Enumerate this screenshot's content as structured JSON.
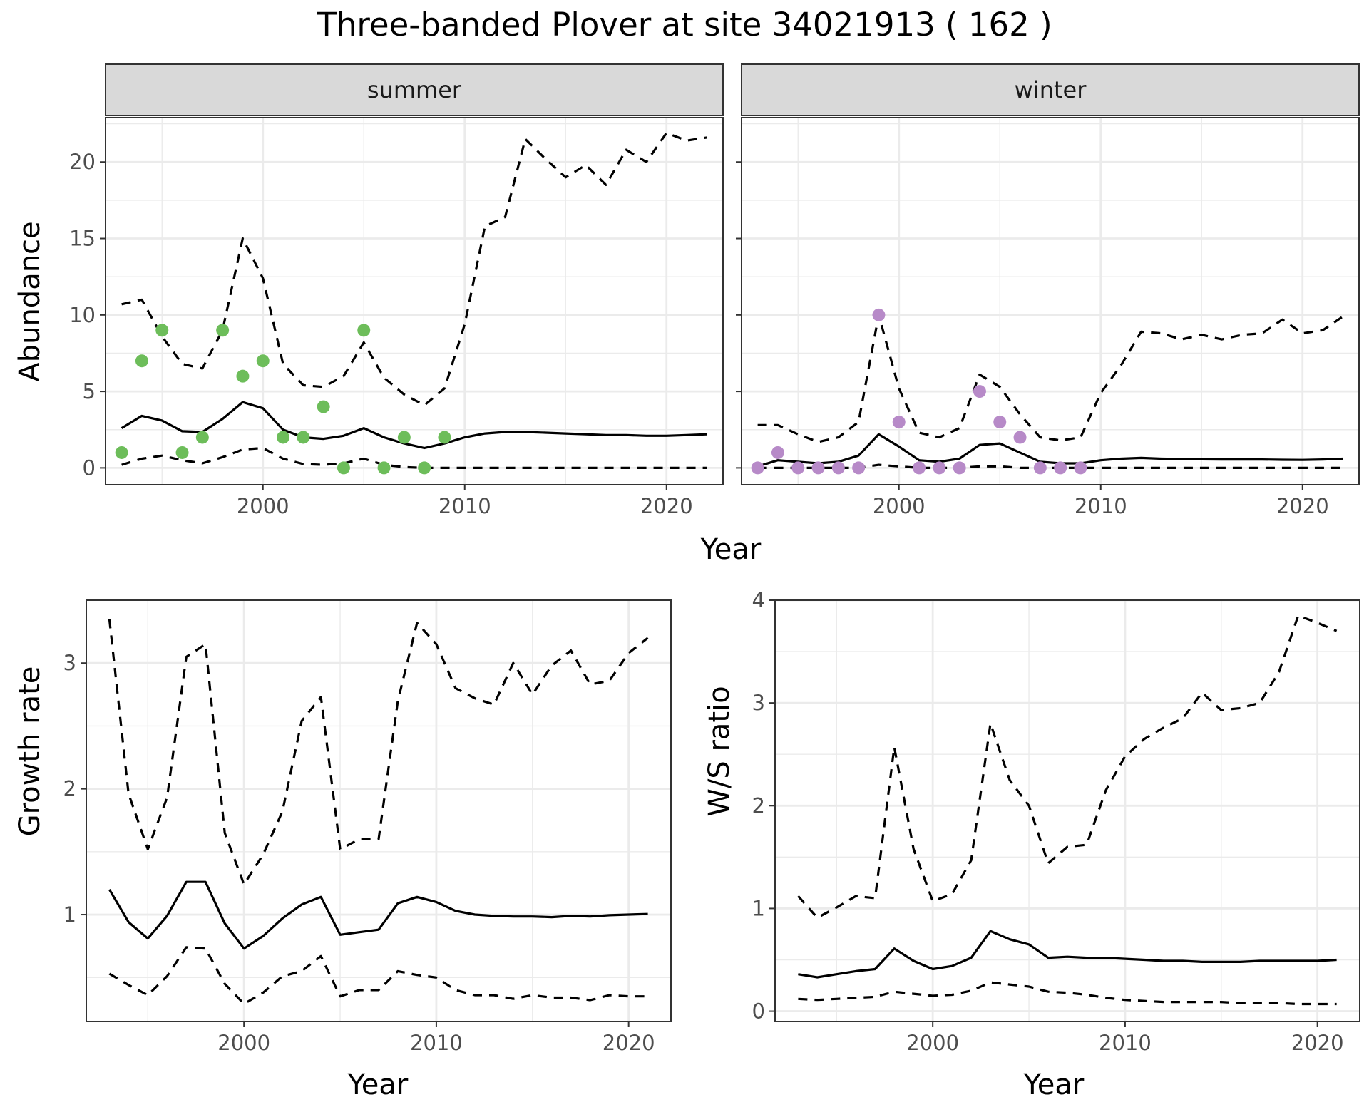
{
  "title": "Three-banded Plover at site 34021913 ( 162 )",
  "colors": {
    "summer_points": "#6dbd5a",
    "winter_points": "#b78ac8",
    "line": "#000000",
    "grid": "#ebebeb",
    "strip_bg": "#d9d9d9",
    "panel_border": "#333333"
  },
  "chart_data": [
    {
      "id": "abundance",
      "type": "line",
      "facets": [
        "summer",
        "winter"
      ],
      "xlabel": "Year",
      "ylabel": "Abundance",
      "xlim": [
        1992.2,
        2022.8
      ],
      "ylim": [
        -1.1,
        22.9
      ],
      "xticks": [
        2000,
        2010,
        2020
      ],
      "yticks": [
        0,
        5,
        10,
        15,
        20
      ],
      "grid": true,
      "panels": [
        {
          "strip": "summer",
          "points": {
            "x": [
              1993,
              1994,
              1995,
              1996,
              1997,
              1998,
              1999,
              2000,
              2001,
              2002,
              2003,
              2004,
              2005,
              2006,
              2007,
              2008,
              2009
            ],
            "y": [
              1,
              7,
              9,
              1,
              2,
              9,
              6,
              7,
              2,
              2,
              4,
              0,
              9,
              0,
              2,
              0,
              2
            ]
          },
          "series": [
            {
              "style": "solid",
              "x": [
                1993,
                1994,
                1995,
                1996,
                1997,
                1998,
                1999,
                2000,
                2001,
                2002,
                2003,
                2004,
                2005,
                2006,
                2007,
                2008,
                2009,
                2010,
                2011,
                2012,
                2013,
                2014,
                2015,
                2016,
                2017,
                2018,
                2019,
                2020,
                2021,
                2022
              ],
              "y": [
                2.6,
                3.4,
                3.1,
                2.4,
                2.35,
                3.2,
                4.3,
                3.9,
                2.5,
                2.0,
                1.9,
                2.1,
                2.6,
                2.0,
                1.6,
                1.3,
                1.6,
                2.0,
                2.25,
                2.35,
                2.35,
                2.3,
                2.25,
                2.2,
                2.15,
                2.15,
                2.1,
                2.1,
                2.15,
                2.2
              ]
            },
            {
              "style": "dashed",
              "x": [
                1993,
                1994,
                1995,
                1996,
                1997,
                1998,
                1999,
                2000,
                2001,
                2002,
                2003,
                2004,
                2005,
                2006,
                2007,
                2008,
                2009,
                2010,
                2011,
                2012,
                2013,
                2014,
                2015,
                2016,
                2017,
                2018,
                2019,
                2020,
                2021,
                2022
              ],
              "y": [
                10.7,
                11.0,
                8.6,
                6.8,
                6.5,
                9.0,
                15.0,
                12.4,
                6.8,
                5.4,
                5.3,
                6.0,
                8.2,
                5.9,
                4.8,
                4.1,
                5.2,
                9.4,
                15.8,
                16.4,
                21.5,
                20.2,
                19.0,
                19.8,
                18.5,
                20.8,
                20.0,
                21.9,
                21.4,
                21.6
              ]
            },
            {
              "style": "dashed",
              "x": [
                1993,
                1994,
                1995,
                1996,
                1997,
                1998,
                1999,
                2000,
                2001,
                2002,
                2003,
                2004,
                2005,
                2006,
                2007,
                2008,
                2009,
                2010,
                2011,
                2012,
                2013,
                2014,
                2015,
                2016,
                2017,
                2018,
                2019,
                2020,
                2021,
                2022
              ],
              "y": [
                0.2,
                0.6,
                0.8,
                0.5,
                0.3,
                0.7,
                1.2,
                1.3,
                0.6,
                0.25,
                0.2,
                0.3,
                0.6,
                0.2,
                0.05,
                0,
                0,
                0,
                0,
                0,
                0,
                0,
                0,
                0,
                0,
                0,
                0,
                0,
                0,
                0
              ]
            }
          ]
        },
        {
          "strip": "winter",
          "points": {
            "x": [
              1993,
              1994,
              1995,
              1996,
              1997,
              1998,
              1999,
              2000,
              2001,
              2002,
              2003,
              2004,
              2005,
              2006,
              2007,
              2008,
              2009
            ],
            "y": [
              0,
              1,
              0,
              0,
              0,
              0,
              10,
              3,
              0,
              0,
              0,
              5,
              3,
              2,
              0,
              0,
              0
            ]
          },
          "series": [
            {
              "style": "solid",
              "x": [
                1993,
                1994,
                1995,
                1996,
                1997,
                1998,
                1999,
                2000,
                2001,
                2002,
                2003,
                2004,
                2005,
                2006,
                2007,
                2008,
                2009,
                2010,
                2011,
                2012,
                2013,
                2014,
                2015,
                2016,
                2017,
                2018,
                2019,
                2020,
                2021,
                2022
              ],
              "y": [
                0.1,
                0.5,
                0.4,
                0.3,
                0.4,
                0.8,
                2.2,
                1.4,
                0.5,
                0.4,
                0.6,
                1.5,
                1.6,
                1.0,
                0.4,
                0.3,
                0.3,
                0.5,
                0.6,
                0.65,
                0.6,
                0.58,
                0.56,
                0.55,
                0.55,
                0.55,
                0.53,
                0.52,
                0.55,
                0.6
              ]
            },
            {
              "style": "dashed",
              "x": [
                1993,
                1994,
                1995,
                1996,
                1997,
                1998,
                1999,
                2000,
                2001,
                2002,
                2003,
                2004,
                2005,
                2006,
                2007,
                2008,
                2009,
                2010,
                2011,
                2012,
                2013,
                2014,
                2015,
                2016,
                2017,
                2018,
                2019,
                2020,
                2021,
                2022
              ],
              "y": [
                2.8,
                2.8,
                2.2,
                1.7,
                2.0,
                3.0,
                10.0,
                5.2,
                2.3,
                2.0,
                2.6,
                6.1,
                5.3,
                3.5,
                2.0,
                1.8,
                2.0,
                4.9,
                6.7,
                8.9,
                8.8,
                8.4,
                8.7,
                8.4,
                8.7,
                8.8,
                9.7,
                8.8,
                9.0,
                9.9
              ]
            },
            {
              "style": "dashed",
              "x": [
                1993,
                1994,
                1995,
                1996,
                1997,
                1998,
                1999,
                2000,
                2001,
                2002,
                2003,
                2004,
                2005,
                2006,
                2007,
                2008,
                2009,
                2010,
                2011,
                2012,
                2013,
                2014,
                2015,
                2016,
                2017,
                2018,
                2019,
                2020,
                2021,
                2022
              ],
              "y": [
                0,
                0,
                0,
                0,
                0,
                0,
                0.2,
                0.1,
                0,
                0,
                0,
                0.1,
                0.1,
                0,
                0,
                0,
                0,
                0,
                0,
                0,
                0,
                0,
                0,
                0,
                0,
                0,
                0,
                0,
                0,
                0
              ]
            }
          ]
        }
      ]
    },
    {
      "id": "growth",
      "type": "line",
      "xlabel": "Year",
      "ylabel": "Growth rate",
      "xlim": [
        1991.8,
        2022.2
      ],
      "ylim": [
        0.15,
        3.5
      ],
      "xticks": [
        2000,
        2010,
        2020
      ],
      "yticks": [
        1,
        2,
        3
      ],
      "grid": true,
      "series": [
        {
          "style": "solid",
          "x": [
            1993,
            1994,
            1995,
            1996,
            1997,
            1998,
            1999,
            2000,
            2001,
            2002,
            2003,
            2004,
            2005,
            2006,
            2007,
            2008,
            2009,
            2010,
            2011,
            2012,
            2013,
            2014,
            2015,
            2016,
            2017,
            2018,
            2019,
            2020,
            2021
          ],
          "y": [
            1.2,
            0.94,
            0.81,
            0.99,
            1.26,
            1.26,
            0.93,
            0.73,
            0.83,
            0.97,
            1.08,
            1.14,
            0.84,
            0.86,
            0.88,
            1.09,
            1.14,
            1.1,
            1.03,
            1.0,
            0.99,
            0.985,
            0.985,
            0.98,
            0.99,
            0.985,
            0.995,
            1.0,
            1.005
          ]
        },
        {
          "style": "dashed",
          "x": [
            1993,
            1994,
            1995,
            1996,
            1997,
            1998,
            1999,
            2000,
            2001,
            2002,
            2003,
            2004,
            2005,
            2006,
            2007,
            2008,
            2009,
            2010,
            2011,
            2012,
            2013,
            2014,
            2015,
            2016,
            2017,
            2018,
            2019,
            2020,
            2021
          ],
          "y": [
            3.35,
            1.96,
            1.52,
            1.93,
            3.05,
            3.15,
            1.65,
            1.24,
            1.48,
            1.82,
            2.54,
            2.73,
            1.52,
            1.6,
            1.6,
            2.7,
            3.32,
            3.15,
            2.8,
            2.72,
            2.67,
            3.0,
            2.75,
            2.98,
            3.1,
            2.83,
            2.86,
            3.08,
            3.2
          ]
        },
        {
          "style": "dashed",
          "x": [
            1993,
            1994,
            1995,
            1996,
            1997,
            1998,
            1999,
            2000,
            2001,
            2002,
            2003,
            2004,
            2005,
            2006,
            2007,
            2008,
            2009,
            2010,
            2011,
            2012,
            2013,
            2014,
            2015,
            2016,
            2017,
            2018,
            2019,
            2020,
            2021
          ],
          "y": [
            0.53,
            0.44,
            0.36,
            0.51,
            0.74,
            0.73,
            0.45,
            0.29,
            0.38,
            0.51,
            0.55,
            0.67,
            0.35,
            0.4,
            0.4,
            0.55,
            0.52,
            0.5,
            0.4,
            0.36,
            0.36,
            0.33,
            0.36,
            0.34,
            0.34,
            0.32,
            0.36,
            0.35,
            0.35
          ]
        }
      ]
    },
    {
      "id": "ws_ratio",
      "type": "line",
      "xlabel": "Year",
      "ylabel": "W/S ratio",
      "xlim": [
        1991.8,
        2022.2
      ],
      "ylim": [
        -0.1,
        4.0
      ],
      "xticks": [
        2000,
        2010,
        2020
      ],
      "yticks": [
        0,
        1,
        2,
        3,
        4
      ],
      "grid": true,
      "series": [
        {
          "style": "solid",
          "x": [
            1993,
            1994,
            1995,
            1996,
            1997,
            1998,
            1999,
            2000,
            2001,
            2002,
            2003,
            2004,
            2005,
            2006,
            2007,
            2008,
            2009,
            2010,
            2011,
            2012,
            2013,
            2014,
            2015,
            2016,
            2017,
            2018,
            2019,
            2020,
            2021
          ],
          "y": [
            0.36,
            0.33,
            0.36,
            0.39,
            0.41,
            0.61,
            0.49,
            0.41,
            0.44,
            0.52,
            0.78,
            0.7,
            0.65,
            0.52,
            0.53,
            0.52,
            0.52,
            0.51,
            0.5,
            0.49,
            0.49,
            0.48,
            0.48,
            0.48,
            0.49,
            0.49,
            0.49,
            0.49,
            0.5
          ]
        },
        {
          "style": "dashed",
          "x": [
            1993,
            1994,
            1995,
            1996,
            1997,
            1998,
            1999,
            2000,
            2001,
            2002,
            2003,
            2004,
            2005,
            2006,
            2007,
            2008,
            2009,
            2010,
            2011,
            2012,
            2013,
            2014,
            2015,
            2016,
            2017,
            2018,
            2019,
            2020,
            2021
          ],
          "y": [
            1.12,
            0.91,
            1.01,
            1.12,
            1.1,
            2.57,
            1.58,
            1.07,
            1.14,
            1.47,
            2.8,
            2.25,
            2.0,
            1.44,
            1.6,
            1.62,
            2.15,
            2.48,
            2.65,
            2.76,
            2.85,
            3.1,
            2.93,
            2.95,
            3.0,
            3.3,
            3.85,
            3.78,
            3.7
          ]
        },
        {
          "style": "dashed",
          "x": [
            1993,
            1994,
            1995,
            1996,
            1997,
            1998,
            1999,
            2000,
            2001,
            2002,
            2003,
            2004,
            2005,
            2006,
            2007,
            2008,
            2009,
            2010,
            2011,
            2012,
            2013,
            2014,
            2015,
            2016,
            2017,
            2018,
            2019,
            2020,
            2021
          ],
          "y": [
            0.12,
            0.11,
            0.12,
            0.13,
            0.14,
            0.19,
            0.17,
            0.15,
            0.16,
            0.2,
            0.28,
            0.26,
            0.24,
            0.19,
            0.18,
            0.16,
            0.13,
            0.11,
            0.1,
            0.09,
            0.09,
            0.09,
            0.09,
            0.08,
            0.08,
            0.08,
            0.07,
            0.07,
            0.07
          ]
        }
      ]
    }
  ]
}
